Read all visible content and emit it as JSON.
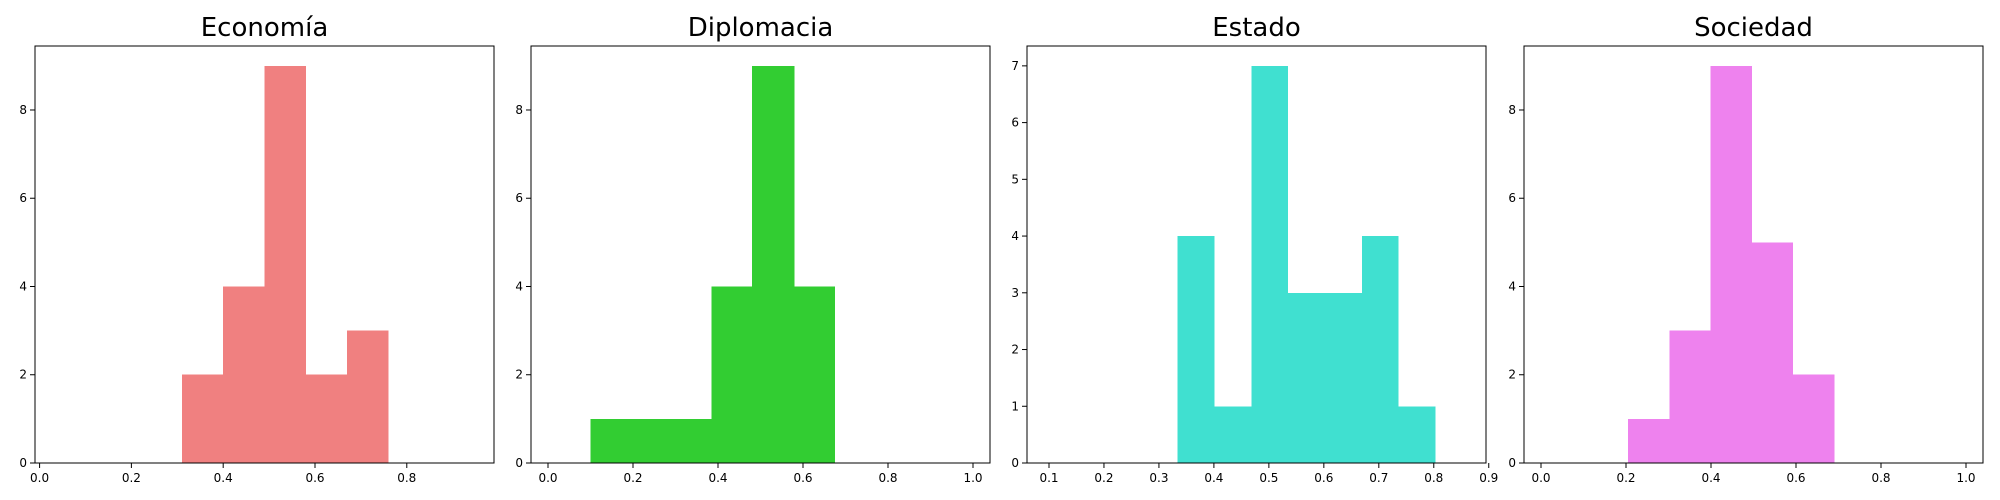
{
  "chart_data": [
    {
      "type": "bar",
      "title": "Economía",
      "color": "#F08080",
      "bins": [
        {
          "x0": 0.31,
          "x1": 0.4,
          "count": 2
        },
        {
          "x0": 0.4,
          "x1": 0.49,
          "count": 4
        },
        {
          "x0": 0.49,
          "x1": 0.58,
          "count": 9
        },
        {
          "x0": 0.58,
          "x1": 0.67,
          "count": 2
        },
        {
          "x0": 0.67,
          "x1": 0.76,
          "count": 3
        }
      ],
      "xlim": [
        -0.01,
        0.99
      ],
      "ylim": [
        0,
        9.45
      ],
      "xticks": [
        0.0,
        0.2,
        0.4,
        0.6,
        0.8
      ],
      "xtick_labels": [
        "0.0",
        "0.2",
        "0.4",
        "0.6",
        "0.8"
      ],
      "yticks": [
        0,
        2,
        4,
        6,
        8
      ],
      "ytick_labels": [
        "0",
        "2",
        "4",
        "6",
        "8"
      ],
      "grid": false
    },
    {
      "type": "bar",
      "title": "Diplomacia",
      "color": "#32CD32",
      "bins": [
        {
          "x0": 0.1,
          "x1": 0.195,
          "count": 1
        },
        {
          "x0": 0.195,
          "x1": 0.29,
          "count": 1
        },
        {
          "x0": 0.29,
          "x1": 0.385,
          "count": 1
        },
        {
          "x0": 0.385,
          "x1": 0.48,
          "count": 4
        },
        {
          "x0": 0.48,
          "x1": 0.58,
          "count": 9
        },
        {
          "x0": 0.58,
          "x1": 0.675,
          "count": 4
        }
      ],
      "xlim": [
        -0.04,
        1.04
      ],
      "ylim": [
        0,
        9.45
      ],
      "xticks": [
        0.0,
        0.2,
        0.4,
        0.6,
        0.8,
        1.0
      ],
      "xtick_labels": [
        "0.0",
        "0.2",
        "0.4",
        "0.6",
        "0.8",
        "1.0"
      ],
      "yticks": [
        0,
        2,
        4,
        6,
        8
      ],
      "ytick_labels": [
        "0",
        "2",
        "4",
        "6",
        "8"
      ],
      "grid": false
    },
    {
      "type": "bar",
      "title": "Estado",
      "color": "#40E0D0",
      "bins": [
        {
          "x0": 0.334,
          "x1": 0.401,
          "count": 4
        },
        {
          "x0": 0.401,
          "x1": 0.468,
          "count": 1
        },
        {
          "x0": 0.468,
          "x1": 0.535,
          "count": 7
        },
        {
          "x0": 0.535,
          "x1": 0.602,
          "count": 3
        },
        {
          "x0": 0.602,
          "x1": 0.669,
          "count": 3
        },
        {
          "x0": 0.669,
          "x1": 0.736,
          "count": 4
        },
        {
          "x0": 0.736,
          "x1": 0.803,
          "count": 1
        }
      ],
      "xlim": [
        0.06,
        0.895
      ],
      "ylim": [
        0,
        7.35
      ],
      "xticks": [
        0.1,
        0.2,
        0.3,
        0.4,
        0.5,
        0.6,
        0.7,
        0.8,
        0.9
      ],
      "xtick_labels": [
        "0.1",
        "0.2",
        "0.3",
        "0.4",
        "0.5",
        "0.6",
        "0.7",
        "0.8",
        "0.9"
      ],
      "yticks": [
        0,
        1,
        2,
        3,
        4,
        5,
        6,
        7
      ],
      "ytick_labels": [
        "0",
        "1",
        "2",
        "3",
        "4",
        "5",
        "6",
        "7"
      ],
      "grid": false
    },
    {
      "type": "bar",
      "title": "Sociedad",
      "color": "#EE82EE",
      "bins": [
        {
          "x0": 0.205,
          "x1": 0.302,
          "count": 1
        },
        {
          "x0": 0.302,
          "x1": 0.399,
          "count": 3
        },
        {
          "x0": 0.399,
          "x1": 0.496,
          "count": 9
        },
        {
          "x0": 0.496,
          "x1": 0.593,
          "count": 5
        },
        {
          "x0": 0.593,
          "x1": 0.69,
          "count": 2
        }
      ],
      "xlim": [
        -0.04,
        1.04
      ],
      "ylim": [
        0,
        9.45
      ],
      "xticks": [
        0.0,
        0.2,
        0.4,
        0.6,
        0.8,
        1.0
      ],
      "xtick_labels": [
        "0.0",
        "0.2",
        "0.4",
        "0.6",
        "0.8",
        "1.0"
      ],
      "yticks": [
        0,
        2,
        4,
        6,
        8
      ],
      "ytick_labels": [
        "0",
        "2",
        "4",
        "6",
        "8"
      ],
      "grid": false
    }
  ]
}
